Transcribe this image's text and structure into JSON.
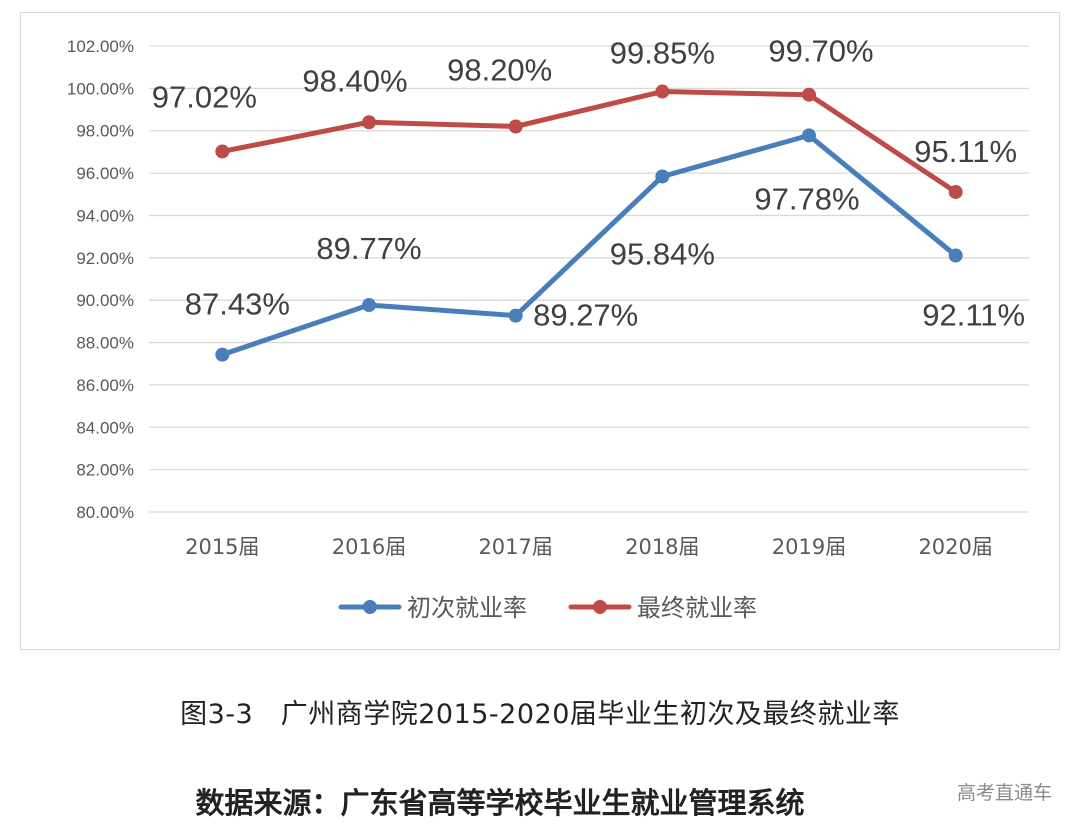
{
  "chart_data": {
    "type": "line",
    "categories": [
      "2015届",
      "2016届",
      "2017届",
      "2018届",
      "2019届",
      "2020届"
    ],
    "ylim": [
      80,
      102
    ],
    "y_ticks": [
      "80.00%",
      "82.00%",
      "84.00%",
      "86.00%",
      "88.00%",
      "90.00%",
      "92.00%",
      "94.00%",
      "96.00%",
      "98.00%",
      "100.00%",
      "102.00%"
    ],
    "grid": true,
    "legend_position": "bottom",
    "series": [
      {
        "name": "初次就业率",
        "color": "#4a7ebb",
        "values": [
          87.43,
          89.77,
          89.27,
          95.84,
          97.78,
          92.11
        ],
        "labels": [
          "87.43%",
          "89.77%",
          "89.27%",
          "95.84%",
          "97.78%",
          "92.11%"
        ]
      },
      {
        "name": "最终就业率",
        "color": "#be4b48",
        "values": [
          97.02,
          98.4,
          98.2,
          99.85,
          99.7,
          95.11
        ],
        "labels": [
          "97.02%",
          "98.40%",
          "98.20%",
          "99.85%",
          "99.70%",
          "95.11%"
        ]
      }
    ]
  },
  "caption": "图3-3　广州商学院2015-2020届毕业生初次及最终就业率",
  "source": "数据来源：广东省高等学校毕业生就业管理系统",
  "watermark": "高考直通车"
}
